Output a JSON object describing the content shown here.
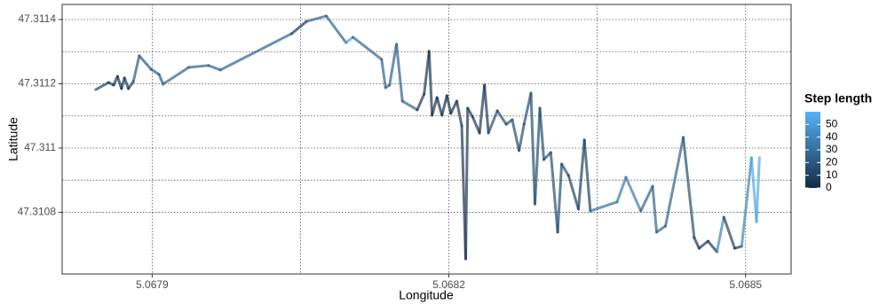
{
  "chart_data": {
    "type": "path",
    "x_label": "Longitude",
    "y_label": "Latitude",
    "legend_title": "Step length",
    "x": [
      5.067843,
      5.067856,
      5.067861,
      5.067865,
      5.067869,
      5.067872,
      5.067876,
      5.067881,
      5.067887,
      5.067899,
      5.067907,
      5.067911,
      5.067937,
      5.067957,
      5.067969,
      5.068041,
      5.068056,
      5.068076,
      5.068096,
      5.068103,
      5.068132,
      5.068136,
      5.06814,
      5.068147,
      5.068153,
      5.068168,
      5.068175,
      5.06818,
      5.068183,
      5.068188,
      5.068193,
      5.068198,
      5.068202,
      5.068208,
      5.068213,
      5.068217,
      5.068219,
      5.068224,
      5.068231,
      5.068236,
      5.06824,
      5.068249,
      5.068258,
      5.068264,
      5.068271,
      5.068276,
      5.068283,
      5.068287,
      5.068292,
      5.068296,
      5.068303,
      5.06831,
      5.068314,
      5.068321,
      5.068331,
      5.068337,
      5.068343,
      5.06837,
      5.068379,
      5.068394,
      5.068406,
      5.06841,
      5.068419,
      5.068437,
      5.068448,
      5.068453,
      5.068462,
      5.068471,
      5.068478,
      5.068489,
      5.068496,
      5.068506,
      5.068511,
      5.068514
    ],
    "y": [
      47.311182,
      47.311204,
      47.311196,
      47.311223,
      47.311185,
      47.311218,
      47.311185,
      47.311207,
      47.311287,
      47.311245,
      47.311229,
      47.311199,
      47.311251,
      47.311257,
      47.311243,
      47.311356,
      47.311394,
      47.311411,
      47.311328,
      47.311345,
      47.311276,
      47.311188,
      47.311196,
      47.311323,
      47.311146,
      47.311119,
      47.311168,
      47.311301,
      47.311102,
      47.311157,
      47.311102,
      47.311163,
      47.311108,
      47.311146,
      47.311069,
      47.310655,
      47.311124,
      47.311097,
      47.311047,
      47.311196,
      47.311047,
      47.311116,
      47.311074,
      47.311088,
      47.310992,
      47.311074,
      47.311171,
      47.310826,
      47.311124,
      47.310964,
      47.310986,
      47.310738,
      47.31095,
      47.310914,
      47.31081,
      47.311025,
      47.310804,
      47.310832,
      47.310909,
      47.310804,
      47.310881,
      47.310738,
      47.310757,
      47.311033,
      47.310721,
      47.310688,
      47.31071,
      47.310677,
      47.310785,
      47.310688,
      47.310694,
      47.31097,
      47.310771,
      47.31097
    ],
    "step_length": [
      null,
      10,
      5,
      3,
      3,
      3,
      3,
      5,
      20,
      20,
      20,
      20,
      25,
      25,
      25,
      25,
      5,
      25,
      25,
      50,
      25,
      25,
      25,
      25,
      25,
      25,
      5,
      5,
      5,
      3,
      3,
      3,
      3,
      3,
      5,
      5,
      5,
      5,
      5,
      5,
      5,
      15,
      15,
      15,
      15,
      15,
      15,
      15,
      15,
      15,
      15,
      15,
      15,
      15,
      10,
      10,
      10,
      30,
      35,
      35,
      25,
      25,
      25,
      25,
      15,
      5,
      5,
      5,
      40,
      10,
      5,
      40,
      55,
      55
    ],
    "color_scale": {
      "low": "#132B43",
      "high": "#56B1F7",
      "limits": [
        0,
        60
      ]
    },
    "legend_ticks": [
      0,
      10,
      20,
      30,
      40,
      50
    ],
    "xlim": [
      5.067809,
      5.068546
    ],
    "ylim": [
      47.310608,
      47.311447
    ],
    "xticks": [
      5.0679,
      5.0682,
      5.0685
    ],
    "yticks": [
      47.3108,
      47.311,
      47.3112,
      47.3114
    ],
    "grid": true
  }
}
